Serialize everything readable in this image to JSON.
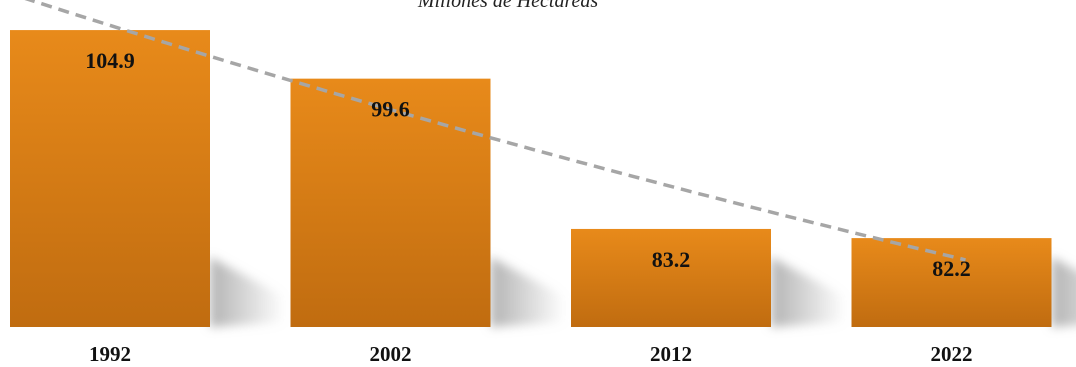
{
  "chart_data": {
    "type": "bar",
    "subtitle": "Millones de Hectáreas",
    "categories": [
      "1992",
      "2002",
      "2012",
      "2022"
    ],
    "values": [
      104.9,
      99.6,
      83.2,
      82.2
    ],
    "value_labels": [
      "104.9",
      "99.6",
      "83.2",
      "82.2"
    ],
    "ylim": [
      72.5,
      106.0
    ],
    "trendline": {
      "style": "dashed",
      "shape": "exponential"
    },
    "grid": false,
    "legend": "none",
    "colors": {
      "bar": "#DD7E16",
      "bar_dark": "#C06C10",
      "trend": "#A6A6A6",
      "shadow": "#999999"
    }
  }
}
